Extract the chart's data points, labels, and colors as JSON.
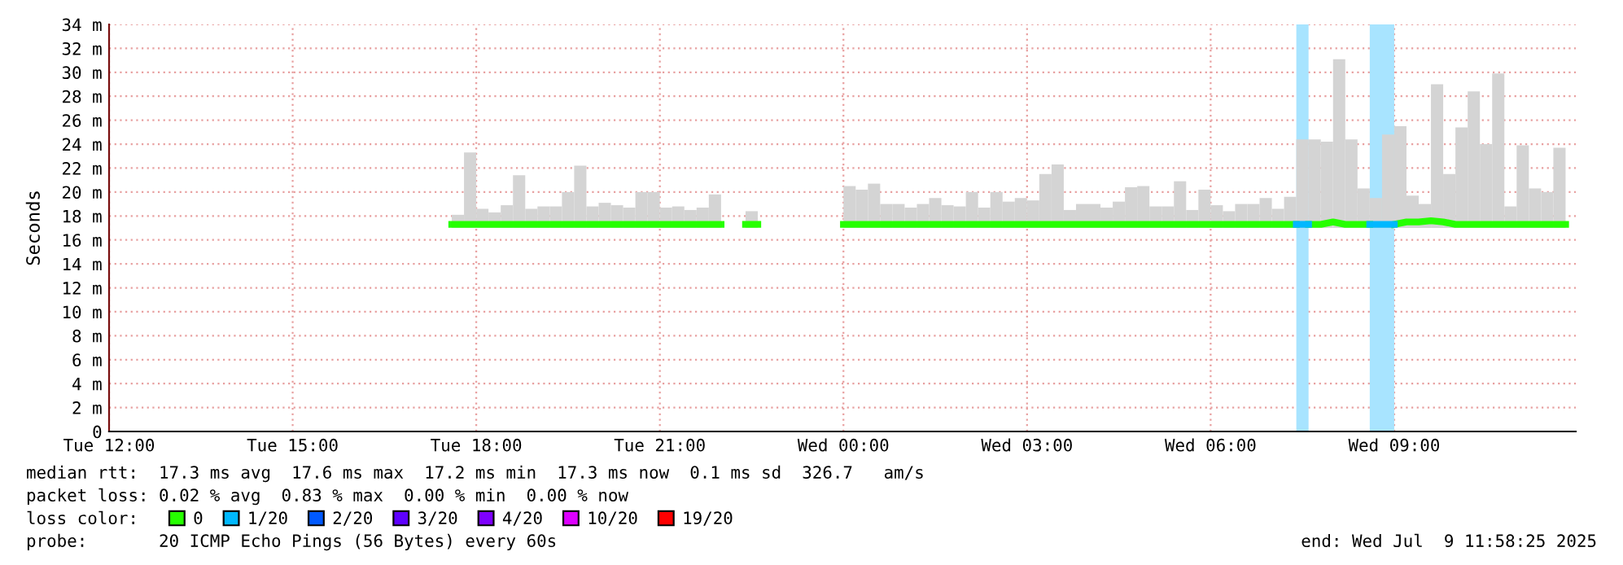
{
  "chart_data": {
    "type": "bar",
    "ylabel": "Seconds",
    "xlim": [
      "2025-07-08T12:00",
      "2025-07-09T11:58"
    ],
    "xticks": [
      {
        "value": "2025-07-08T12:00",
        "label": "Tue 12:00"
      },
      {
        "value": "2025-07-08T15:00",
        "label": "Tue 15:00"
      },
      {
        "value": "2025-07-08T18:00",
        "label": "Tue 18:00"
      },
      {
        "value": "2025-07-08T21:00",
        "label": "Tue 21:00"
      },
      {
        "value": "2025-07-09T00:00",
        "label": "Wed 00:00"
      },
      {
        "value": "2025-07-09T03:00",
        "label": "Wed 03:00"
      },
      {
        "value": "2025-07-09T06:00",
        "label": "Wed 06:00"
      },
      {
        "value": "2025-07-09T09:00",
        "label": "Wed 09:00"
      }
    ],
    "ylim": [
      0,
      34
    ],
    "yticks": [
      0,
      {
        "value": 2,
        "label": "2 m"
      },
      {
        "value": 4,
        "label": "4 m"
      },
      {
        "value": 6,
        "label": "6 m"
      },
      {
        "value": 8,
        "label": "8 m"
      },
      {
        "value": 10,
        "label": "10 m"
      },
      {
        "value": 12,
        "label": "12 m"
      },
      {
        "value": 14,
        "label": "14 m"
      },
      {
        "value": 16,
        "label": "16 m"
      },
      {
        "value": 18,
        "label": "18 m"
      },
      {
        "value": 20,
        "label": "20 m"
      },
      {
        "value": 22,
        "label": "22 m"
      },
      {
        "value": 24,
        "label": "24 m"
      },
      {
        "value": 26,
        "label": "26 m"
      },
      {
        "value": 28,
        "label": "28 m"
      },
      {
        "value": 30,
        "label": "30 m"
      },
      {
        "value": 32,
        "label": "32 m"
      },
      {
        "value": 34,
        "label": "34 m"
      }
    ],
    "grid": true,
    "legend": "bottom",
    "legend_title": "loss color:",
    "series": [
      {
        "type": "bar",
        "color": "#d4d4d4",
        "x": [
          "2025-07-08T17:36",
          "2025-07-08T17:48",
          "2025-07-08T18:00",
          "2025-07-08T18:12",
          "2025-07-08T18:24",
          "2025-07-08T18:36",
          "2025-07-08T18:48",
          "2025-07-08T19:00",
          "2025-07-08T19:12",
          "2025-07-08T19:24",
          "2025-07-08T19:36",
          "2025-07-08T19:48",
          "2025-07-08T20:00",
          "2025-07-08T20:12",
          "2025-07-08T20:24",
          "2025-07-08T20:36",
          "2025-07-08T20:48",
          "2025-07-08T21:00",
          "2025-07-08T21:12",
          "2025-07-08T21:24",
          "2025-07-08T21:36",
          "2025-07-08T21:48",
          "2025-07-08T22:24",
          "2025-07-09T00:00",
          "2025-07-09T00:12",
          "2025-07-09T00:24",
          "2025-07-09T00:36",
          "2025-07-09T00:48",
          "2025-07-09T01:00",
          "2025-07-09T01:12",
          "2025-07-09T01:24",
          "2025-07-09T01:36",
          "2025-07-09T01:48",
          "2025-07-09T02:00",
          "2025-07-09T02:12",
          "2025-07-09T02:24",
          "2025-07-09T02:36",
          "2025-07-09T02:48",
          "2025-07-09T03:00",
          "2025-07-09T03:12",
          "2025-07-09T03:24",
          "2025-07-09T03:36",
          "2025-07-09T03:48",
          "2025-07-09T04:00",
          "2025-07-09T04:12",
          "2025-07-09T04:24",
          "2025-07-09T04:36",
          "2025-07-09T04:48",
          "2025-07-09T05:00",
          "2025-07-09T05:12",
          "2025-07-09T05:24",
          "2025-07-09T05:36",
          "2025-07-09T05:48",
          "2025-07-09T06:00",
          "2025-07-09T06:12",
          "2025-07-09T06:24",
          "2025-07-09T06:36",
          "2025-07-09T06:48",
          "2025-07-09T07:00",
          "2025-07-09T07:12",
          "2025-07-09T07:24",
          "2025-07-09T07:36",
          "2025-07-09T07:48",
          "2025-07-09T08:00",
          "2025-07-09T08:12",
          "2025-07-09T08:24",
          "2025-07-09T08:36",
          "2025-07-09T08:48",
          "2025-07-09T09:00",
          "2025-07-09T09:12",
          "2025-07-09T09:24",
          "2025-07-09T09:36",
          "2025-07-09T09:48",
          "2025-07-09T10:00",
          "2025-07-09T10:12",
          "2025-07-09T10:24",
          "2025-07-09T10:36",
          "2025-07-09T10:48",
          "2025-07-09T11:00",
          "2025-07-09T11:12",
          "2025-07-09T11:24",
          "2025-07-09T11:36"
        ],
        "base": [
          17,
          17,
          17,
          17,
          17,
          17,
          17,
          17,
          17,
          17,
          17,
          17,
          17,
          17,
          17,
          17,
          17,
          17,
          17,
          17,
          17,
          17,
          17,
          17,
          17,
          17,
          17,
          17,
          17,
          17,
          17,
          17,
          17,
          17,
          17,
          17,
          17,
          17,
          17,
          17,
          17,
          17,
          17,
          17,
          17,
          17,
          17,
          17,
          17,
          17,
          17,
          17,
          17,
          17,
          17,
          17,
          17,
          17,
          17,
          17,
          17,
          17,
          17,
          17,
          17,
          17,
          17,
          17,
          17,
          17,
          17,
          17,
          17,
          17,
          17,
          17,
          17,
          17,
          17,
          17,
          17,
          17
        ],
        "values": [
          1.1,
          6.3,
          1.6,
          1.3,
          1.9,
          4.4,
          1.6,
          1.8,
          1.8,
          3.0,
          5.2,
          1.8,
          2.1,
          1.9,
          1.7,
          3.0,
          3.0,
          1.7,
          1.8,
          1.5,
          1.7,
          2.8,
          1.4,
          3.5,
          3.2,
          3.7,
          2.0,
          2.0,
          1.7,
          2.0,
          2.5,
          1.9,
          1.8,
          3.0,
          1.7,
          3.0,
          2.2,
          2.5,
          2.3,
          4.5,
          5.3,
          1.5,
          2.0,
          2.0,
          1.7,
          2.2,
          3.4,
          3.5,
          1.8,
          1.8,
          3.9,
          1.5,
          3.2,
          1.9,
          1.4,
          2.0,
          2.0,
          2.5,
          1.6,
          2.6,
          7.4,
          7.4,
          7.2,
          14.1,
          7.4,
          3.3,
          2.5,
          7.8,
          8.5,
          2.7,
          2.0,
          12.0,
          4.5,
          8.4,
          11.4,
          7.0,
          12.9,
          1.8,
          6.9,
          3.3,
          3.0,
          6.7
        ]
      },
      {
        "type": "line",
        "name": "0",
        "color": "#26ff00",
        "x": [
          "2025-07-08T17:36",
          "2025-07-08T17:48",
          "2025-07-08T18:00",
          "2025-07-08T18:12",
          "2025-07-08T18:24",
          "2025-07-08T18:36",
          "2025-07-08T18:48",
          "2025-07-08T19:00",
          "2025-07-08T19:12",
          "2025-07-08T19:24",
          "2025-07-08T19:36",
          "2025-07-08T19:48",
          "2025-07-08T20:00",
          "2025-07-08T20:12",
          "2025-07-08T20:24",
          "2025-07-08T20:36",
          "2025-07-08T20:48",
          "2025-07-08T21:00",
          "2025-07-08T21:12",
          "2025-07-08T21:24",
          "2025-07-08T21:36",
          "2025-07-08T21:48",
          "2025-07-08T22:00"
        ],
        "values": [
          17.3,
          17.3,
          17.3,
          17.3,
          17.3,
          17.3,
          17.3,
          17.3,
          17.3,
          17.3,
          17.3,
          17.3,
          17.3,
          17.3,
          17.3,
          17.3,
          17.3,
          17.3,
          17.3,
          17.3,
          17.3,
          17.3,
          17.3
        ]
      },
      {
        "type": "line",
        "color": "#26ff00",
        "x": [
          "2025-07-08T22:24",
          "2025-07-08T22:36"
        ],
        "values": [
          17.3,
          17.3
        ]
      },
      {
        "type": "line",
        "color": "#26ff00",
        "x": [
          "2025-07-09T00:00",
          "2025-07-09T00:12",
          "2025-07-09T00:24",
          "2025-07-09T00:36",
          "2025-07-09T00:48",
          "2025-07-09T01:00",
          "2025-07-09T01:12",
          "2025-07-09T01:24",
          "2025-07-09T01:36",
          "2025-07-09T01:48",
          "2025-07-09T02:00",
          "2025-07-09T02:12",
          "2025-07-09T02:24",
          "2025-07-09T02:36",
          "2025-07-09T02:48",
          "2025-07-09T03:00",
          "2025-07-09T03:12",
          "2025-07-09T03:24",
          "2025-07-09T03:36",
          "2025-07-09T03:48",
          "2025-07-09T04:00",
          "2025-07-09T04:12",
          "2025-07-09T04:24",
          "2025-07-09T04:36",
          "2025-07-09T04:48",
          "2025-07-09T05:00",
          "2025-07-09T05:12",
          "2025-07-09T05:24",
          "2025-07-09T05:36",
          "2025-07-09T05:48",
          "2025-07-09T06:00",
          "2025-07-09T06:12",
          "2025-07-09T06:24",
          "2025-07-09T06:36",
          "2025-07-09T06:48",
          "2025-07-09T07:00",
          "2025-07-09T07:12",
          "2025-07-09T07:24"
        ],
        "values": [
          17.3,
          17.3,
          17.3,
          17.3,
          17.3,
          17.3,
          17.3,
          17.3,
          17.3,
          17.3,
          17.3,
          17.3,
          17.3,
          17.3,
          17.3,
          17.3,
          17.3,
          17.3,
          17.3,
          17.3,
          17.3,
          17.3,
          17.3,
          17.3,
          17.3,
          17.3,
          17.3,
          17.3,
          17.3,
          17.3,
          17.3,
          17.3,
          17.3,
          17.3,
          17.3,
          17.3,
          17.3,
          17.3
        ]
      },
      {
        "type": "line",
        "color": "#26ff00",
        "x": [
          "2025-07-09T07:36",
          "2025-07-09T07:48",
          "2025-07-09T08:00",
          "2025-07-09T08:12",
          "2025-07-09T08:24",
          "2025-07-09T08:36"
        ],
        "values": [
          17.3,
          17.3,
          17.5,
          17.3,
          17.3,
          17.3
        ]
      },
      {
        "type": "line",
        "color": "#26ff00",
        "x": [
          "2025-07-09T09:00",
          "2025-07-09T09:12",
          "2025-07-09T09:24",
          "2025-07-09T09:36",
          "2025-07-09T09:48",
          "2025-07-09T10:00",
          "2025-07-09T10:12",
          "2025-07-09T10:24",
          "2025-07-09T10:36",
          "2025-07-09T10:48",
          "2025-07-09T11:00",
          "2025-07-09T11:12",
          "2025-07-09T11:24",
          "2025-07-09T11:36",
          "2025-07-09T11:48"
        ],
        "values": [
          17.3,
          17.5,
          17.5,
          17.6,
          17.5,
          17.3,
          17.3,
          17.3,
          17.3,
          17.3,
          17.3,
          17.3,
          17.3,
          17.3,
          17.3
        ]
      },
      {
        "type": "line",
        "name": "1/20",
        "color": "#00b8ff",
        "x": [
          "2025-07-09T07:24",
          "2025-07-09T07:36"
        ],
        "values": [
          17.3,
          17.3
        ]
      },
      {
        "type": "line",
        "color": "#00b8ff",
        "x": [
          "2025-07-09T08:36",
          "2025-07-09T08:48",
          "2025-07-09T09:00"
        ],
        "values": [
          17.3,
          17.3,
          17.3
        ]
      },
      {
        "type": "line",
        "name": "2/20",
        "color": "#0059ff"
      },
      {
        "type": "line",
        "name": "3/20",
        "color": "#5e00ff"
      },
      {
        "type": "line",
        "name": "4/20",
        "color": "#7e00ff"
      },
      {
        "type": "line",
        "name": "10/20",
        "color": "#dd00ff"
      },
      {
        "type": "line",
        "name": "19/20",
        "color": "#ff0000"
      }
    ],
    "bands": [
      {
        "axis": "x",
        "from": "2025-07-09T07:24",
        "to": "2025-07-09T07:36",
        "color": "#a8e4ff"
      },
      {
        "axis": "x",
        "from": "2025-07-09T08:36",
        "to": "2025-07-09T09:00",
        "color": "#a8e4ff"
      }
    ],
    "annotations": [
      "median rtt:  17.3 ms avg  17.6 ms max  17.2 ms min  17.3 ms now  0.1 ms sd  326.7   am/s",
      "packet loss: 0.02 % avg  0.83 % max  0.00 % min  0.00 % now",
      "probe:       20 ICMP Echo Pings (56 Bytes) every 60s",
      "end: Wed Jul  9 11:58:25 2025"
    ]
  }
}
